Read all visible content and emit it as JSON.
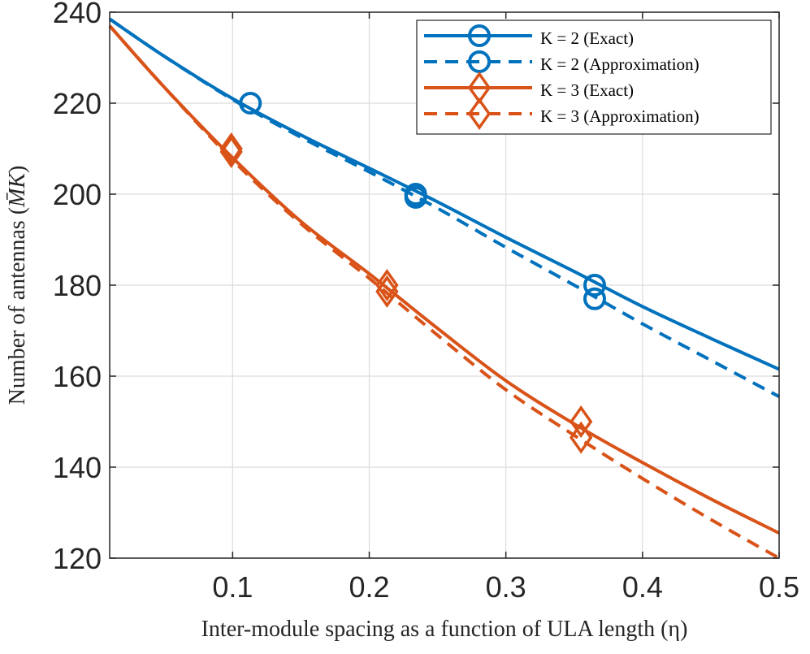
{
  "colors": {
    "k2": "#0072bd",
    "k3": "#d95319",
    "grid": "#dcdcdc",
    "axis": "#262626"
  },
  "chart_data": {
    "type": "line",
    "title": "",
    "xlabel": "Inter-module spacing as a function of ULA length (η)",
    "ylabel_prefix": "Number of antennas (",
    "ylabel_math": "M̄K",
    "ylabel_suffix": ")",
    "xlim": [
      0.01,
      0.5
    ],
    "ylim": [
      120,
      240
    ],
    "xticks": [
      0.1,
      0.2,
      0.3,
      0.4,
      0.5
    ],
    "xtick_labels": [
      "0.1",
      "0.2",
      "0.3",
      "0.4",
      "0.5"
    ],
    "yticks": [
      120,
      140,
      160,
      180,
      200,
      220,
      240
    ],
    "ytick_labels": [
      "120",
      "140",
      "160",
      "180",
      "200",
      "220",
      "240"
    ],
    "grid": true,
    "legend_position": "top-right",
    "series": [
      {
        "name": "K = 2 (Exact)",
        "color_key": "k2",
        "line": "solid",
        "marker": "circle",
        "x": [
          0.01,
          0.05,
          0.1,
          0.15,
          0.2,
          0.25,
          0.3,
          0.35,
          0.4,
          0.45,
          0.5
        ],
        "y": [
          238.5,
          230.3,
          221.0,
          213.0,
          205.7,
          198.3,
          190.5,
          183.0,
          175.3,
          168.3,
          161.5
        ],
        "markers_x": [
          0.113,
          0.234,
          0.365
        ],
        "markers_y": [
          220,
          200,
          180
        ]
      },
      {
        "name": "K = 2 (Approximation)",
        "color_key": "k2",
        "line": "dashed",
        "marker": "circle",
        "x": [
          0.01,
          0.05,
          0.1,
          0.15,
          0.2,
          0.25,
          0.3,
          0.35,
          0.4,
          0.45,
          0.5
        ],
        "y": [
          238.5,
          230.3,
          220.8,
          212.5,
          204.9,
          196.9,
          188.3,
          180.0,
          171.5,
          163.5,
          155.5
        ],
        "markers_x": [
          0.234,
          0.365
        ],
        "markers_y": [
          199.3,
          177.0
        ]
      },
      {
        "name": "K = 3 (Exact)",
        "color_key": "k3",
        "line": "solid",
        "marker": "diamond",
        "x": [
          0.01,
          0.05,
          0.1,
          0.15,
          0.2,
          0.25,
          0.3,
          0.35,
          0.4,
          0.45,
          0.5
        ],
        "y": [
          237.0,
          223.5,
          208.0,
          194.0,
          182.5,
          170.5,
          159.0,
          149.5,
          141.0,
          133.0,
          125.5
        ],
        "markers_x": [
          0.099,
          0.213,
          0.355
        ],
        "markers_y": [
          210,
          180,
          150
        ]
      },
      {
        "name": "K = 3 (Approximation)",
        "color_key": "k3",
        "line": "dashed",
        "marker": "diamond",
        "x": [
          0.01,
          0.05,
          0.1,
          0.15,
          0.2,
          0.25,
          0.3,
          0.35,
          0.4,
          0.45,
          0.5
        ],
        "y": [
          237.0,
          223.5,
          207.5,
          193.5,
          181.5,
          169.0,
          157.0,
          147.0,
          137.5,
          128.5,
          120.0
        ],
        "markers_x": [
          0.099,
          0.213,
          0.355
        ],
        "markers_y": [
          209.3,
          178.6,
          146.5
        ]
      }
    ]
  }
}
